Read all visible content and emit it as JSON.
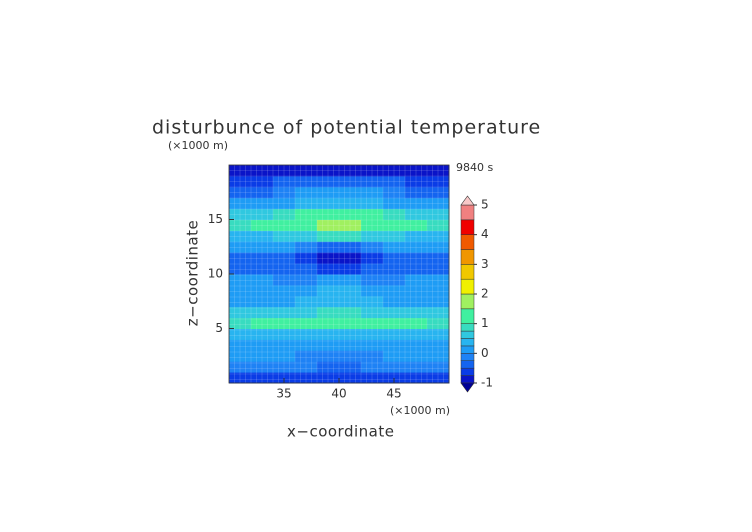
{
  "chart_data": {
    "type": "contour",
    "title": "disturbunce of potential temperature",
    "y_unit": "(×1000 m)",
    "x_unit": "(×1000 m)",
    "time_label": "9840 s",
    "xlabel": "x−coordinate",
    "ylabel": "z−coordinate",
    "x": [
      31,
      33,
      35,
      37,
      39,
      41,
      43,
      45,
      47,
      49
    ],
    "y": [
      0.5,
      1.5,
      2.5,
      3.5,
      4.5,
      5.5,
      6.5,
      7.5,
      8.5,
      9.5,
      10.5,
      11.5,
      12.5,
      13.5,
      14.5,
      15.5,
      16.5,
      17.5,
      18.5,
      19.5
    ],
    "values": [
      [
        -0.6,
        -0.6,
        -0.6,
        -0.7,
        -0.7,
        -0.7,
        -0.7,
        -0.6,
        -0.6,
        -0.6
      ],
      [
        -0.1,
        -0.1,
        -0.2,
        -0.2,
        -0.3,
        -0.3,
        -0.2,
        -0.2,
        -0.1,
        -0.1
      ],
      [
        0.1,
        0.1,
        0.0,
        -0.1,
        -0.1,
        -0.1,
        -0.1,
        0.0,
        0.1,
        0.1
      ],
      [
        0.1,
        0.1,
        0.1,
        0.2,
        0.2,
        0.2,
        0.2,
        0.1,
        0.1,
        0.1
      ],
      [
        0.3,
        0.3,
        0.3,
        0.4,
        0.4,
        0.4,
        0.4,
        0.3,
        0.3,
        0.3
      ],
      [
        0.9,
        1.0,
        1.1,
        1.0,
        1.2,
        1.2,
        1.0,
        1.1,
        1.0,
        0.9
      ],
      [
        0.7,
        0.7,
        0.6,
        0.6,
        0.8,
        0.8,
        0.6,
        0.6,
        0.7,
        0.7
      ],
      [
        0.2,
        0.2,
        0.2,
        0.3,
        0.3,
        0.3,
        0.3,
        0.2,
        0.2,
        0.2
      ],
      [
        0.1,
        0.1,
        0.1,
        0.2,
        0.3,
        0.3,
        0.2,
        0.1,
        0.1,
        0.1
      ],
      [
        0.0,
        0.0,
        -0.1,
        -0.1,
        0.1,
        0.1,
        -0.1,
        -0.1,
        0.0,
        0.0
      ],
      [
        -0.3,
        -0.3,
        -0.4,
        -0.5,
        -0.6,
        -0.6,
        -0.5,
        -0.4,
        -0.3,
        -0.3
      ],
      [
        -0.4,
        -0.4,
        -0.5,
        -0.7,
        -0.9,
        -0.9,
        -0.7,
        -0.5,
        -0.4,
        -0.4
      ],
      [
        0.1,
        0.1,
        0.0,
        -0.2,
        -0.3,
        -0.3,
        -0.2,
        0.0,
        0.1,
        0.1
      ],
      [
        0.4,
        0.4,
        0.5,
        0.7,
        0.8,
        0.8,
        0.7,
        0.5,
        0.4,
        0.4
      ],
      [
        0.9,
        1.0,
        1.2,
        1.4,
        1.6,
        1.6,
        1.4,
        1.2,
        1.0,
        0.9
      ],
      [
        0.5,
        0.6,
        0.8,
        1.0,
        1.2,
        1.2,
        1.0,
        0.8,
        0.6,
        0.5
      ],
      [
        0.1,
        0.1,
        0.2,
        0.3,
        0.3,
        0.3,
        0.3,
        0.2,
        0.1,
        0.1
      ],
      [
        -0.4,
        -0.3,
        -0.2,
        0.1,
        0.2,
        0.2,
        0.1,
        -0.2,
        -0.3,
        -0.4
      ],
      [
        -0.6,
        -0.6,
        -0.5,
        -0.5,
        -0.5,
        -0.5,
        -0.5,
        -0.5,
        -0.6,
        -0.6
      ],
      [
        -0.9,
        -0.9,
        -0.8,
        -0.8,
        -0.8,
        -0.8,
        -0.8,
        -0.8,
        -0.9,
        -0.9
      ]
    ],
    "xlim": [
      30,
      50
    ],
    "xticks": [
      35,
      40,
      45
    ],
    "ylim": [
      0,
      20
    ],
    "yticks": [
      5,
      10,
      15
    ],
    "levels": [
      -1,
      -0.75,
      -0.5,
      -0.25,
      0,
      0.25,
      0.5,
      0.75,
      1,
      1.5,
      2,
      2.5,
      3,
      3.5,
      4,
      4.5,
      5
    ],
    "colors": [
      "#0a14c8",
      "#0a3ce6",
      "#1464f0",
      "#1e82f5",
      "#1e9cf5",
      "#28b4f0",
      "#30c8e0",
      "#38dcc0",
      "#40f0a0",
      "#a0f060",
      "#f0f000",
      "#f0c800",
      "#f09600",
      "#f05a00",
      "#f00000",
      "#f08080"
    ],
    "under_color": "#000096",
    "over_color": "#f8c8c8",
    "colorbar_ticks": [
      -1,
      0,
      1,
      2,
      3,
      4,
      5
    ]
  }
}
